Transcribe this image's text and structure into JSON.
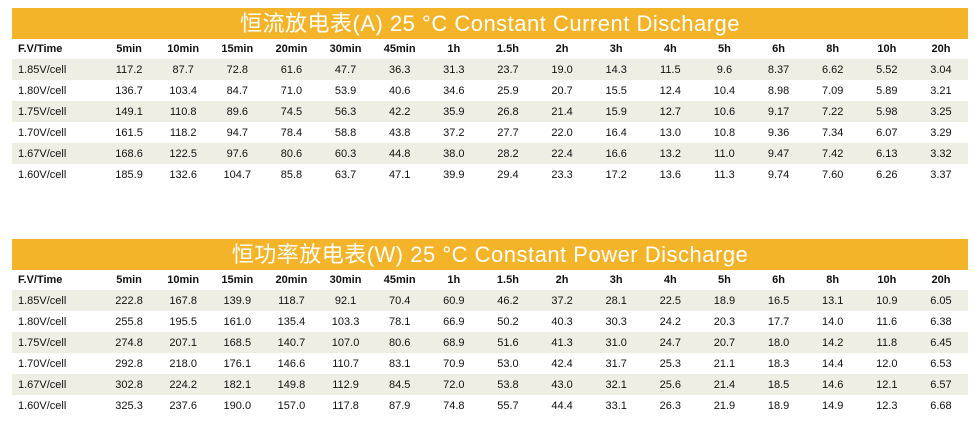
{
  "tables": [
    {
      "title": "恒流放电表(A) 25 °C Constant Current Discharge",
      "header": [
        "F.V/Time",
        "5min",
        "10min",
        "15min",
        "20min",
        "30min",
        "45min",
        "1h",
        "1.5h",
        "2h",
        "3h",
        "4h",
        "5h",
        "6h",
        "8h",
        "10h",
        "20h"
      ],
      "rows": [
        [
          "1.85V/cell",
          "117.2",
          "87.7",
          "72.8",
          "61.6",
          "47.7",
          "36.3",
          "31.3",
          "23.7",
          "19.0",
          "14.3",
          "11.5",
          "9.6",
          "8.37",
          "6.62",
          "5.52",
          "3.04"
        ],
        [
          "1.80V/cell",
          "136.7",
          "103.4",
          "84.7",
          "71.0",
          "53.9",
          "40.6",
          "34.6",
          "25.9",
          "20.7",
          "15.5",
          "12.4",
          "10.4",
          "8.98",
          "7.09",
          "5.89",
          "3.21"
        ],
        [
          "1.75V/cell",
          "149.1",
          "110.8",
          "89.6",
          "74.5",
          "56.3",
          "42.2",
          "35.9",
          "26.8",
          "21.4",
          "15.9",
          "12.7",
          "10.6",
          "9.17",
          "7.22",
          "5.98",
          "3.25"
        ],
        [
          "1.70V/cell",
          "161.5",
          "118.2",
          "94.7",
          "78.4",
          "58.8",
          "43.8",
          "37.2",
          "27.7",
          "22.0",
          "16.4",
          "13.0",
          "10.8",
          "9.36",
          "7.34",
          "6.07",
          "3.29"
        ],
        [
          "1.67V/cell",
          "168.6",
          "122.5",
          "97.6",
          "80.6",
          "60.3",
          "44.8",
          "38.0",
          "28.2",
          "22.4",
          "16.6",
          "13.2",
          "11.0",
          "9.47",
          "7.42",
          "6.13",
          "3.32"
        ],
        [
          "1.60V/cell",
          "185.9",
          "132.6",
          "104.7",
          "85.8",
          "63.7",
          "47.1",
          "39.9",
          "29.4",
          "23.3",
          "17.2",
          "13.6",
          "11.3",
          "9.74",
          "7.60",
          "6.26",
          "3.37"
        ]
      ]
    },
    {
      "title": "恒功率放电表(W) 25 °C Constant Power Discharge",
      "header": [
        "F.V/Time",
        "5min",
        "10min",
        "15min",
        "20min",
        "30min",
        "45min",
        "1h",
        "1.5h",
        "2h",
        "3h",
        "4h",
        "5h",
        "6h",
        "8h",
        "10h",
        "20h"
      ],
      "rows": [
        [
          "1.85V/cell",
          "222.8",
          "167.8",
          "139.9",
          "118.7",
          "92.1",
          "70.4",
          "60.9",
          "46.2",
          "37.2",
          "28.1",
          "22.5",
          "18.9",
          "16.5",
          "13.1",
          "10.9",
          "6.05"
        ],
        [
          "1.80V/cell",
          "255.8",
          "195.5",
          "161.0",
          "135.4",
          "103.3",
          "78.1",
          "66.9",
          "50.2",
          "40.3",
          "30.3",
          "24.2",
          "20.3",
          "17.7",
          "14.0",
          "11.6",
          "6.38"
        ],
        [
          "1.75V/cell",
          "274.8",
          "207.1",
          "168.5",
          "140.7",
          "107.0",
          "80.6",
          "68.9",
          "51.6",
          "41.3",
          "31.0",
          "24.7",
          "20.7",
          "18.0",
          "14.2",
          "11.8",
          "6.45"
        ],
        [
          "1.70V/cell",
          "292.8",
          "218.0",
          "176.1",
          "146.6",
          "110.7",
          "83.1",
          "70.9",
          "53.0",
          "42.4",
          "31.7",
          "25.3",
          "21.1",
          "18.3",
          "14.4",
          "12.0",
          "6.53"
        ],
        [
          "1.67V/cell",
          "302.8",
          "224.2",
          "182.1",
          "149.8",
          "112.9",
          "84.5",
          "72.0",
          "53.8",
          "43.0",
          "32.1",
          "25.6",
          "21.4",
          "18.5",
          "14.6",
          "12.1",
          "6.57"
        ],
        [
          "1.60V/cell",
          "325.3",
          "237.6",
          "190.0",
          "157.0",
          "117.8",
          "87.9",
          "74.8",
          "55.7",
          "44.4",
          "33.1",
          "26.3",
          "21.9",
          "18.9",
          "14.9",
          "12.3",
          "6.68"
        ]
      ]
    }
  ]
}
